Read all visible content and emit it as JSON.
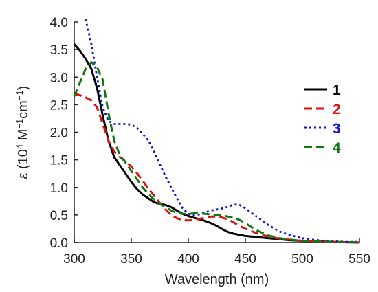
{
  "chart_data": {
    "type": "line",
    "xlabel": "Wavelength (nm)",
    "ylabel_parts": {
      "symbol": "ε",
      "open": " (10",
      "exp1": "4",
      "mid": " M",
      "exp2": "−1",
      "cm": "cm",
      "exp3": "−1",
      "close": ")"
    },
    "xlim": [
      300,
      550
    ],
    "ylim": [
      0,
      4.0
    ],
    "x_ticks": [
      300,
      350,
      400,
      450,
      500,
      550
    ],
    "x_tick_labels": [
      "300",
      "350",
      "400",
      "450",
      "500",
      "550"
    ],
    "y_ticks": [
      0,
      0.5,
      1.0,
      1.5,
      2.0,
      2.5,
      3.0,
      3.5,
      4.0
    ],
    "y_tick_labels": [
      "0.0",
      "0.5",
      "1.0",
      "1.5",
      "2.0",
      "2.5",
      "3.0",
      "3.5",
      "4.0"
    ],
    "grid": false,
    "legend_position": "right",
    "series": [
      {
        "name": "1",
        "color": "#000000",
        "style": "solid",
        "x": [
          300,
          305,
          310,
          315,
          320,
          325,
          330,
          335,
          340,
          345,
          350,
          355,
          360,
          365,
          370,
          375,
          380,
          385,
          390,
          395,
          400,
          405,
          410,
          415,
          420,
          425,
          430,
          435,
          440,
          445,
          450,
          460,
          470,
          480,
          490,
          500,
          510,
          520,
          530,
          540,
          550
        ],
        "y": [
          3.6,
          3.48,
          3.33,
          3.15,
          2.8,
          2.3,
          1.85,
          1.55,
          1.4,
          1.25,
          1.1,
          0.97,
          0.87,
          0.8,
          0.73,
          0.7,
          0.68,
          0.64,
          0.58,
          0.52,
          0.48,
          0.45,
          0.42,
          0.39,
          0.35,
          0.3,
          0.24,
          0.19,
          0.16,
          0.14,
          0.12,
          0.1,
          0.08,
          0.06,
          0.04,
          0.03,
          0.02,
          0.015,
          0.01,
          0.005,
          0.0
        ]
      },
      {
        "name": "2",
        "color": "#dd1111",
        "style": "dashed",
        "x": [
          300,
          305,
          310,
          315,
          320,
          325,
          330,
          335,
          340,
          345,
          350,
          355,
          360,
          365,
          370,
          375,
          380,
          385,
          390,
          395,
          400,
          405,
          410,
          415,
          420,
          425,
          430,
          435,
          440,
          445,
          450,
          460,
          470,
          480,
          490,
          500,
          510,
          520,
          530,
          540,
          550
        ],
        "y": [
          2.7,
          2.67,
          2.63,
          2.58,
          2.45,
          2.15,
          1.85,
          1.65,
          1.55,
          1.47,
          1.38,
          1.26,
          1.12,
          0.98,
          0.85,
          0.72,
          0.6,
          0.5,
          0.44,
          0.41,
          0.4,
          0.41,
          0.43,
          0.45,
          0.47,
          0.47,
          0.45,
          0.42,
          0.36,
          0.3,
          0.25,
          0.17,
          0.11,
          0.07,
          0.05,
          0.03,
          0.02,
          0.015,
          0.01,
          0.005,
          0.0
        ]
      },
      {
        "name": "3",
        "color": "#1111cc",
        "style": "dotted",
        "x": [
          310,
          315,
          320,
          325,
          330,
          335,
          340,
          345,
          350,
          355,
          360,
          365,
          370,
          375,
          380,
          385,
          390,
          395,
          400,
          405,
          410,
          415,
          420,
          425,
          430,
          435,
          440,
          445,
          450,
          460,
          470,
          480,
          490,
          500,
          510,
          520,
          530,
          540,
          550
        ],
        "y": [
          4.05,
          3.6,
          3.0,
          2.45,
          2.2,
          2.15,
          2.15,
          2.15,
          2.14,
          2.08,
          1.97,
          1.85,
          1.65,
          1.42,
          1.2,
          1.0,
          0.8,
          0.62,
          0.52,
          0.5,
          0.51,
          0.55,
          0.58,
          0.6,
          0.62,
          0.65,
          0.69,
          0.68,
          0.62,
          0.47,
          0.32,
          0.2,
          0.13,
          0.08,
          0.05,
          0.03,
          0.02,
          0.01,
          0.01
        ]
      },
      {
        "name": "4",
        "color": "#117711",
        "style": "dashed",
        "x": [
          300,
          305,
          310,
          315,
          320,
          325,
          330,
          335,
          340,
          345,
          350,
          355,
          360,
          365,
          370,
          375,
          380,
          385,
          390,
          395,
          400,
          405,
          410,
          415,
          420,
          425,
          430,
          435,
          440,
          445,
          450,
          460,
          470,
          480,
          490,
          500,
          510,
          520,
          530,
          540,
          550
        ],
        "y": [
          2.65,
          2.9,
          3.15,
          3.27,
          3.18,
          2.95,
          2.35,
          1.85,
          1.58,
          1.45,
          1.3,
          1.15,
          1.0,
          0.88,
          0.78,
          0.7,
          0.64,
          0.58,
          0.54,
          0.52,
          0.52,
          0.53,
          0.53,
          0.52,
          0.51,
          0.5,
          0.49,
          0.47,
          0.45,
          0.41,
          0.35,
          0.22,
          0.13,
          0.08,
          0.05,
          0.03,
          0.02,
          0.015,
          0.01,
          0.005,
          0.0
        ]
      }
    ]
  }
}
